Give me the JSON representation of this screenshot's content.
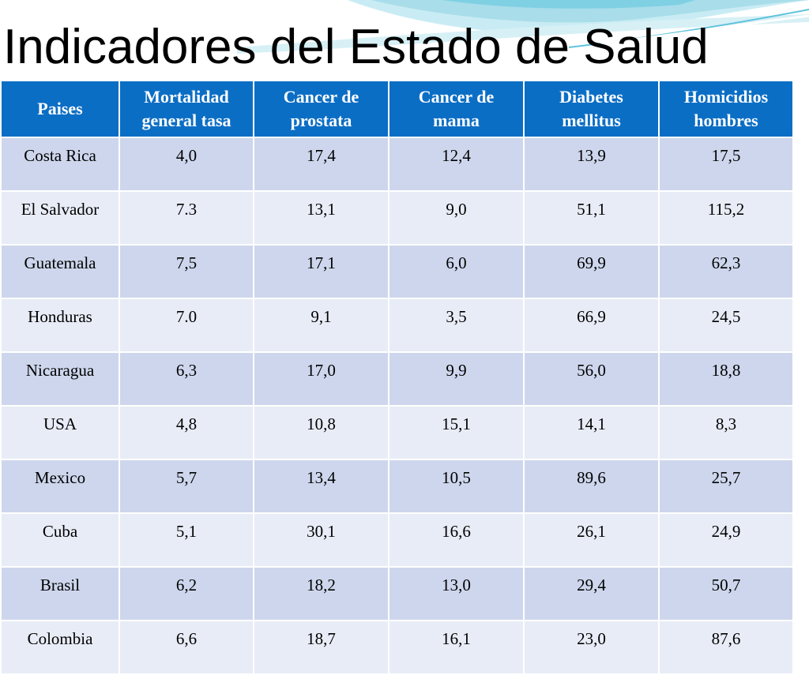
{
  "slide": {
    "title": "Indicadores del Estado de Salud"
  },
  "table": {
    "headers": [
      [
        "Paises"
      ],
      [
        "Mortalidad",
        "general tasa"
      ],
      [
        "Cancer de",
        "prostata"
      ],
      [
        "Cancer de",
        "mama"
      ],
      [
        "Diabetes",
        "mellitus"
      ],
      [
        "Homicidios",
        "hombres"
      ]
    ],
    "rows": [
      [
        "Costa Rica",
        "4,0",
        "17,4",
        "12,4",
        "13,9",
        "17,5"
      ],
      [
        "El Salvador",
        "7.3",
        "13,1",
        "9,0",
        "51,1",
        "115,2"
      ],
      [
        "Guatemala",
        "7,5",
        "17,1",
        "6,0",
        "69,9",
        "62,3"
      ],
      [
        "Honduras",
        "7.0",
        "9,1",
        "3,5",
        "66,9",
        "24,5"
      ],
      [
        "Nicaragua",
        "6,3",
        "17,0",
        "9,9",
        "56,0",
        "18,8"
      ],
      [
        "USA",
        "4,8",
        "10,8",
        "15,1",
        "14,1",
        "8,3"
      ],
      [
        "Mexico",
        "5,7",
        "13,4",
        "10,5",
        "89,6",
        "25,7"
      ],
      [
        "Cuba",
        "5,1",
        "30,1",
        "16,6",
        "26,1",
        "24,9"
      ],
      [
        "Brasil",
        "6,2",
        "18,2",
        "13,0",
        "29,4",
        "50,7"
      ],
      [
        "Colombia",
        "6,6",
        "18,7",
        "16,1",
        "23,0",
        "87,6"
      ]
    ]
  },
  "colors": {
    "header_bg": "#0b6ec5",
    "row_odd": "#cdd6ec",
    "row_even": "#e8ecf6",
    "wave_light": "#a9ddea",
    "wave_mid": "#5fc3dc"
  }
}
